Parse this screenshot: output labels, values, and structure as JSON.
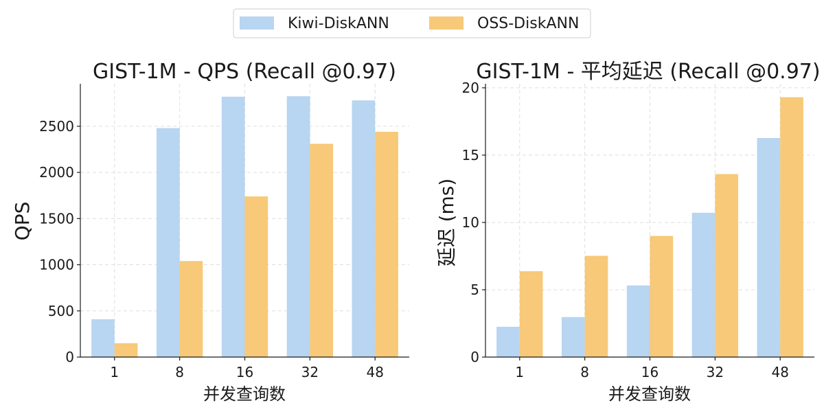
{
  "legend": {
    "items": [
      {
        "name": "Kiwi-DiskANN",
        "color": "#b8d5f1"
      },
      {
        "name": "OSS-DiskANN",
        "color": "#f7c978"
      }
    ],
    "placement": "top-center"
  },
  "chart_data": [
    {
      "type": "bar",
      "title": "GIST-1M - QPS (Recall @0.97)",
      "xlabel": "并发查询数",
      "ylabel": "QPS",
      "categories": [
        "1",
        "8",
        "16",
        "32",
        "48"
      ],
      "series": [
        {
          "name": "Kiwi-DiskANN",
          "values": [
            410,
            2480,
            2820,
            2825,
            2780
          ],
          "color": "#b8d5f1"
        },
        {
          "name": "OSS-DiskANN",
          "values": [
            150,
            1040,
            1740,
            2310,
            2440
          ],
          "color": "#f7c978"
        }
      ],
      "ylim": [
        0,
        2960
      ],
      "yticks": [
        0,
        500,
        1000,
        1500,
        2000,
        2500
      ],
      "grid": true
    },
    {
      "type": "bar",
      "title": "GIST-1M - 平均延迟 (Recall @0.97)",
      "xlabel": "并发查询数",
      "ylabel": "延迟 (ms)",
      "categories": [
        "1",
        "8",
        "16",
        "32",
        "48"
      ],
      "series": [
        {
          "name": "Kiwi-DiskANN",
          "values": [
            2.25,
            2.97,
            5.32,
            10.72,
            16.27
          ],
          "color": "#b8d5f1"
        },
        {
          "name": "OSS-DiskANN",
          "values": [
            6.38,
            7.52,
            9.0,
            13.59,
            19.3
          ],
          "color": "#f7c978"
        }
      ],
      "ylim": [
        0,
        20.3
      ],
      "yticks": [
        0,
        5,
        10,
        15,
        20
      ],
      "grid": true
    }
  ]
}
